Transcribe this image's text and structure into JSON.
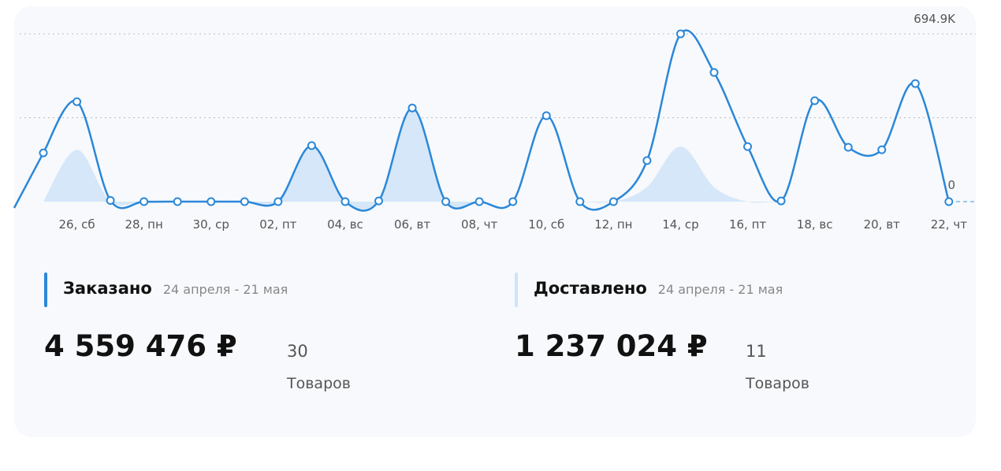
{
  "chart_data": {
    "type": "line",
    "categories": [
      null,
      "26, сб",
      null,
      "28, пн",
      null,
      "30, ср",
      null,
      "02, пт",
      null,
      "04, вс",
      null,
      "06, вт",
      null,
      "08, чт",
      null,
      "10, сб",
      null,
      "12, пн",
      null,
      "14, ср",
      null,
      "16, пт",
      null,
      "18, вс",
      null,
      "20, вт",
      null,
      "22, чт"
    ],
    "series": [
      {
        "name": "Заказано",
        "color": "#2b87d8",
        "values": [
          202000,
          414000,
          5000,
          0,
          0,
          0,
          0,
          0,
          232000,
          0,
          3000,
          388000,
          0,
          0,
          0,
          356000,
          0,
          0,
          170000,
          694900,
          535000,
          228000,
          3000,
          418000,
          225000,
          215000,
          489000,
          0
        ]
      },
      {
        "name": "Доставлено",
        "color": "#d5e7f8",
        "values": [
          0,
          215000,
          0,
          0,
          0,
          0,
          0,
          0,
          232000,
          0,
          0,
          388000,
          0,
          0,
          0,
          0,
          0,
          0,
          60000,
          228000,
          60000,
          0,
          0,
          0,
          0,
          0,
          0,
          0
        ]
      }
    ],
    "ylim": [
      0,
      694900
    ],
    "yticks": [
      0,
      {
        "value": 347450,
        "label": null
      },
      {
        "value": 694900,
        "label": "694.9K"
      }
    ],
    "grid": true
  },
  "summary": [
    {
      "title": "Заказано",
      "period": "24 апреля - 21 мая",
      "amount": "4 559 476 ₽",
      "count": "30",
      "count_label": "Товаров"
    },
    {
      "title": "Доставлено",
      "period": "24 апреля - 21 мая",
      "amount": "1 237 024 ₽",
      "count": "11",
      "count_label": "Товаров"
    }
  ]
}
